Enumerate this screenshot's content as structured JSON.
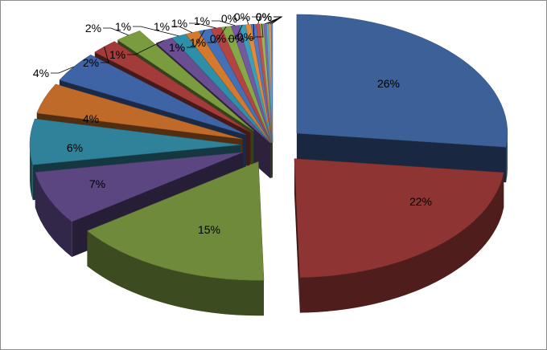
{
  "chart_data": {
    "type": "pie",
    "three_d": true,
    "exploded": true,
    "legend": "none",
    "slices": [
      {
        "label": "26%",
        "value": 26,
        "color": "#3C6098"
      },
      {
        "label": "22%",
        "value": 22,
        "color": "#8E3533"
      },
      {
        "label": "15%",
        "value": 15,
        "color": "#6E8A3A"
      },
      {
        "label": "7%",
        "value": 7,
        "color": "#5B4682"
      },
      {
        "label": "6%",
        "value": 6,
        "color": "#2F8299"
      },
      {
        "label": "4%",
        "value": 4,
        "color": "#C06A2A"
      },
      {
        "label": "4%",
        "value": 4,
        "color": "#3E64A6"
      },
      {
        "label": "2%",
        "value": 2,
        "color": "#A23B3A"
      },
      {
        "label": "2%",
        "value": 2,
        "color": "#7A9C3F"
      },
      {
        "label": "1%",
        "value": 1.3,
        "color": "#6A4E92"
      },
      {
        "label": "1%",
        "value": 1.1,
        "color": "#2E8FA8"
      },
      {
        "label": "1%",
        "value": 1.0,
        "color": "#D47A2E"
      },
      {
        "label": "1%",
        "value": 0.9,
        "color": "#4470B8"
      },
      {
        "label": "1%",
        "value": 0.8,
        "color": "#B44442"
      },
      {
        "label": "1%",
        "value": 0.7,
        "color": "#86A948"
      },
      {
        "label": "1%",
        "value": 0.6,
        "color": "#7559A0"
      },
      {
        "label": "0%",
        "value": 0.45,
        "color": "#3AA0BA"
      },
      {
        "label": "0%",
        "value": 0.4,
        "color": "#E08A3A"
      },
      {
        "label": "0%",
        "value": 0.35,
        "color": "#5078C0"
      },
      {
        "label": "0%",
        "value": 0.3,
        "color": "#C05050"
      },
      {
        "label": "0%",
        "value": 0.25,
        "color": "#95B855"
      },
      {
        "label": "0%",
        "value": 0.2,
        "color": "#8466AE"
      },
      {
        "label": "0%",
        "value": 0.18,
        "color": "#4AB0C8"
      },
      {
        "label": "0%",
        "value": 0.15,
        "color": "#EC9A4A"
      },
      {
        "label": "0%",
        "value": 0.12,
        "color": "#5F86CA"
      }
    ]
  }
}
